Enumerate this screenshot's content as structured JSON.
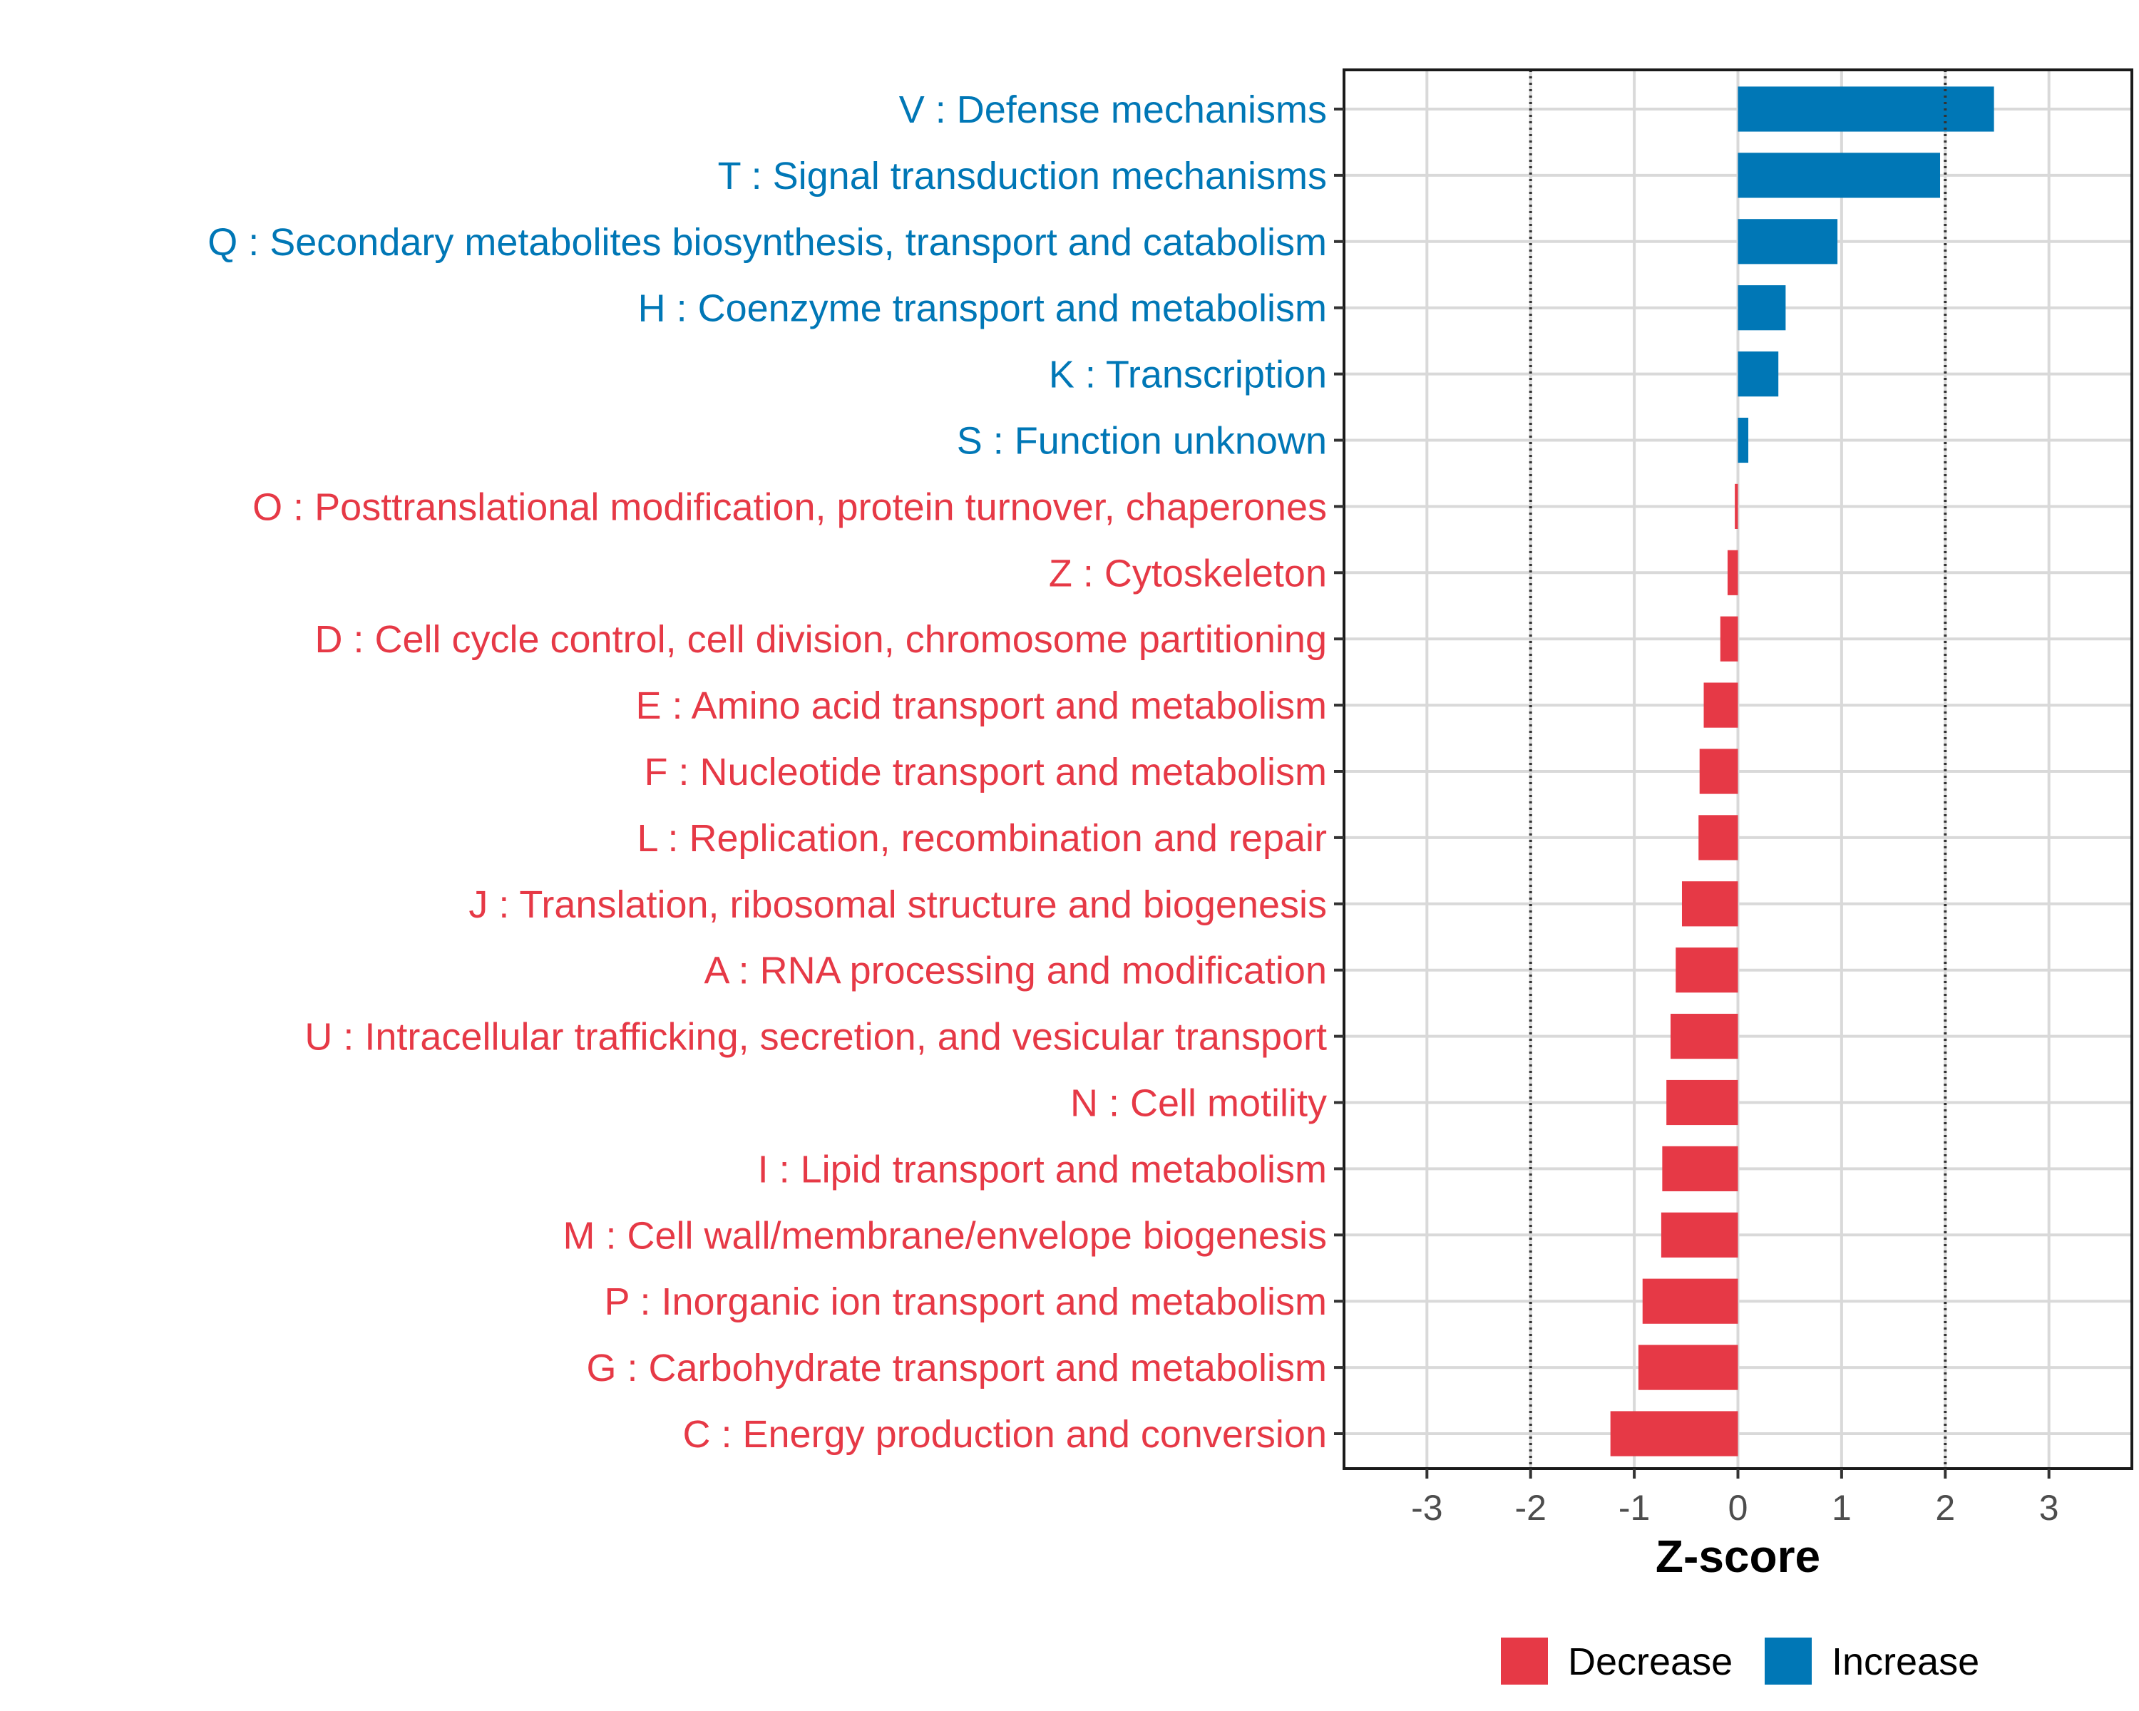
{
  "chart_data": {
    "type": "bar",
    "orientation": "horizontal",
    "categories": [
      "V : Defense mechanisms",
      "T : Signal transduction mechanisms",
      "Q : Secondary metabolites biosynthesis, transport and catabolism",
      "H : Coenzyme transport and metabolism",
      "K : Transcription",
      "S : Function unknown",
      "O : Posttranslational modification, protein turnover, chaperones",
      "Z : Cytoskeleton",
      "D : Cell cycle control, cell division, chromosome partitioning",
      "E : Amino acid transport and metabolism",
      "F : Nucleotide transport and metabolism",
      "L : Replication, recombination and repair",
      "J : Translation, ribosomal structure and biogenesis",
      "A : RNA processing and modification",
      "U : Intracellular trafficking, secretion, and vesicular transport",
      "N : Cell motility",
      "I : Lipid transport and metabolism",
      "M : Cell wall/membrane/envelope biogenesis",
      "P : Inorganic ion transport and metabolism",
      "G : Carbohydrate transport and metabolism",
      "C : Energy production and conversion"
    ],
    "values": [
      2.47,
      1.95,
      0.96,
      0.46,
      0.39,
      0.1,
      -0.03,
      -0.1,
      -0.17,
      -0.33,
      -0.37,
      -0.38,
      -0.54,
      -0.6,
      -0.65,
      -0.69,
      -0.73,
      -0.74,
      -0.92,
      -0.96,
      -1.23
    ],
    "xlabel": "Z-score",
    "xlim": [
      -3.8,
      3.8
    ],
    "xticks": [
      -3,
      -2,
      -1,
      0,
      1,
      2,
      3
    ],
    "reference_lines": [
      -2,
      2
    ],
    "grid": true,
    "legend": {
      "position": "bottom-right",
      "items": [
        {
          "label": "Decrease",
          "color": "#E63946"
        },
        {
          "label": "Increase",
          "color": "#0077B6"
        }
      ]
    },
    "colors": {
      "increase": "#0077B6",
      "decrease": "#E63946"
    }
  }
}
